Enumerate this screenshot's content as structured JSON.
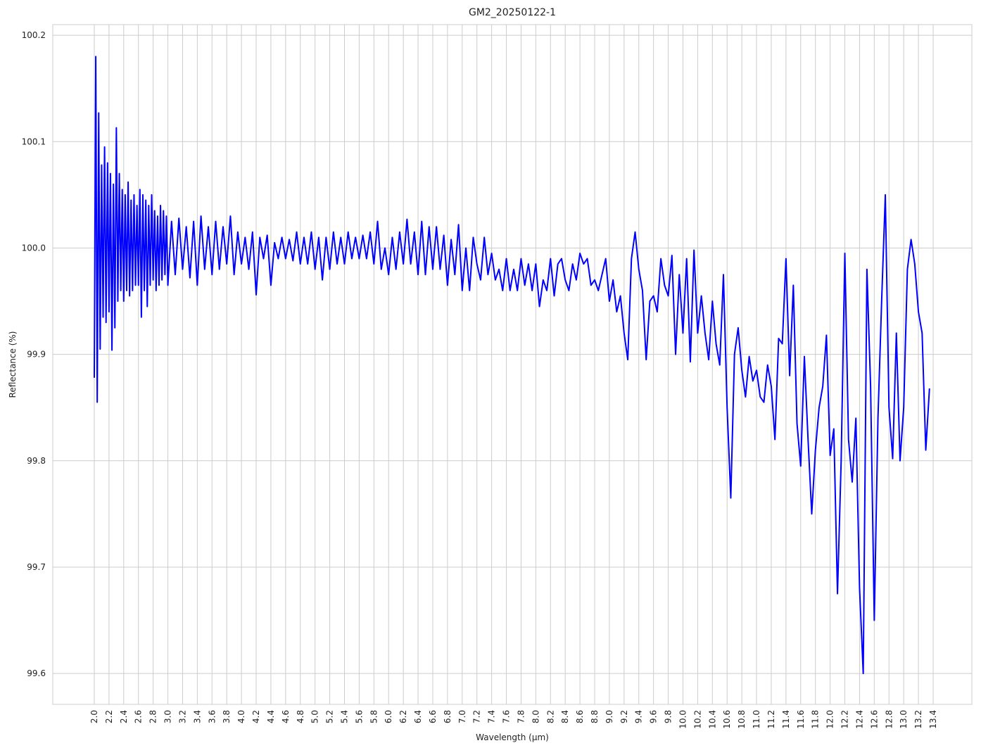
{
  "chart_data": {
    "type": "line",
    "title": "GM2_20250122-1",
    "x_label": "Wavelength (µm)",
    "y_label": "Reflectance (%)",
    "color": "#0000ff",
    "grid": true,
    "xlim": [
      1.436,
      13.926
    ],
    "ylim": [
      99.571,
      100.21
    ],
    "xticks": [
      {
        "value": 2,
        "label": "2.0"
      },
      2.2,
      2.4,
      2.6,
      2.8,
      {
        "value": 3,
        "label": "3.0"
      },
      3.2,
      3.4,
      3.6,
      3.8,
      {
        "value": 4,
        "label": "4.0"
      },
      4.2,
      4.4,
      4.6,
      4.8,
      {
        "value": 5,
        "label": "5.0"
      },
      5.2,
      5.4,
      5.6,
      5.8,
      {
        "value": 6,
        "label": "6.0"
      },
      6.2,
      6.4,
      6.6,
      6.8,
      {
        "value": 7,
        "label": "7.0"
      },
      7.2,
      7.4,
      7.6,
      7.8,
      {
        "value": 8,
        "label": "8.0"
      },
      8.2,
      8.4,
      8.6,
      8.8,
      {
        "value": 9,
        "label": "9.0"
      },
      9.2,
      9.4,
      9.6,
      9.8,
      {
        "value": 10,
        "label": "10.0"
      },
      10.2,
      10.4,
      10.6,
      10.8,
      {
        "value": 11,
        "label": "11.0"
      },
      11.2,
      11.4,
      11.6,
      11.8,
      {
        "value": 12,
        "label": "12.0"
      },
      12.2,
      12.4,
      12.6,
      12.8,
      {
        "value": 13,
        "label": "13.0"
      },
      13.2,
      13.4
    ],
    "yticks": [
      99.6,
      99.7,
      99.8,
      99.9,
      {
        "value": 100,
        "label": "100.0"
      },
      100.1,
      100.2
    ],
    "x": [
      2.0,
      2.02,
      2.04,
      2.06,
      2.08,
      2.1,
      2.12,
      2.14,
      2.16,
      2.18,
      2.2,
      2.22,
      2.24,
      2.26,
      2.28,
      2.3,
      2.32,
      2.34,
      2.36,
      2.38,
      2.4,
      2.42,
      2.44,
      2.46,
      2.48,
      2.5,
      2.52,
      2.54,
      2.56,
      2.58,
      2.6,
      2.62,
      2.64,
      2.66,
      2.68,
      2.7,
      2.72,
      2.74,
      2.76,
      2.78,
      2.8,
      2.82,
      2.84,
      2.86,
      2.88,
      2.9,
      2.92,
      2.94,
      2.96,
      2.98,
      3.0,
      3.05,
      3.1,
      3.15,
      3.2,
      3.25,
      3.3,
      3.35,
      3.4,
      3.45,
      3.5,
      3.55,
      3.6,
      3.65,
      3.7,
      3.75,
      3.8,
      3.85,
      3.9,
      3.95,
      4.0,
      4.05,
      4.1,
      4.15,
      4.2,
      4.25,
      4.3,
      4.35,
      4.4,
      4.45,
      4.5,
      4.55,
      4.6,
      4.65,
      4.7,
      4.75,
      4.8,
      4.85,
      4.9,
      4.95,
      5.0,
      5.05,
      5.1,
      5.15,
      5.2,
      5.25,
      5.3,
      5.35,
      5.4,
      5.45,
      5.5,
      5.55,
      5.6,
      5.65,
      5.7,
      5.75,
      5.8,
      5.85,
      5.9,
      5.95,
      6.0,
      6.05,
      6.1,
      6.15,
      6.2,
      6.25,
      6.3,
      6.35,
      6.4,
      6.45,
      6.5,
      6.55,
      6.6,
      6.65,
      6.7,
      6.75,
      6.8,
      6.85,
      6.9,
      6.95,
      7.0,
      7.05,
      7.1,
      7.15,
      7.2,
      7.25,
      7.3,
      7.35,
      7.4,
      7.45,
      7.5,
      7.55,
      7.6,
      7.65,
      7.7,
      7.75,
      7.8,
      7.85,
      7.9,
      7.95,
      8.0,
      8.05,
      8.1,
      8.15,
      8.2,
      8.25,
      8.3,
      8.35,
      8.4,
      8.45,
      8.5,
      8.55,
      8.6,
      8.65,
      8.7,
      8.75,
      8.8,
      8.85,
      8.9,
      8.95,
      9.0,
      9.05,
      9.1,
      9.15,
      9.2,
      9.25,
      9.3,
      9.35,
      9.4,
      9.45,
      9.5,
      9.55,
      9.6,
      9.65,
      9.7,
      9.75,
      9.8,
      9.85,
      9.9,
      9.95,
      10.0,
      10.05,
      10.1,
      10.15,
      10.2,
      10.25,
      10.3,
      10.35,
      10.4,
      10.45,
      10.5,
      10.55,
      10.6,
      10.65,
      10.7,
      10.75,
      10.8,
      10.85,
      10.9,
      10.95,
      11.0,
      11.05,
      11.1,
      11.15,
      11.2,
      11.25,
      11.3,
      11.35,
      11.4,
      11.45,
      11.5,
      11.55,
      11.6,
      11.65,
      11.7,
      11.75,
      11.8,
      11.85,
      11.9,
      11.95,
      12.0,
      12.05,
      12.1,
      12.15,
      12.2,
      12.25,
      12.3,
      12.35,
      12.4,
      12.45,
      12.5,
      12.55,
      12.6,
      12.65,
      12.7,
      12.75,
      12.8,
      12.85,
      12.9,
      12.95,
      13.0,
      13.05,
      13.1,
      13.15,
      13.2,
      13.25,
      13.3,
      13.35
    ],
    "values": [
      99.878,
      100.18,
      99.855,
      100.127,
      99.905,
      100.078,
      99.935,
      100.095,
      99.93,
      100.08,
      99.94,
      100.07,
      99.904,
      100.06,
      99.925,
      100.113,
      99.95,
      100.07,
      99.96,
      100.055,
      99.95,
      100.05,
      99.96,
      100.062,
      99.955,
      100.045,
      99.96,
      100.05,
      99.965,
      100.04,
      99.965,
      100.055,
      99.935,
      100.05,
      99.96,
      100.045,
      99.945,
      100.04,
      99.965,
      100.05,
      99.97,
      100.035,
      99.96,
      100.03,
      99.965,
      100.04,
      99.97,
      100.035,
      99.975,
      100.03,
      99.965,
      100.025,
      99.975,
      100.028,
      99.98,
      100.02,
      99.972,
      100.025,
      99.965,
      100.03,
      99.98,
      100.02,
      99.975,
      100.025,
      99.98,
      100.02,
      99.985,
      100.03,
      99.975,
      100.015,
      99.985,
      100.01,
      99.98,
      100.015,
      99.956,
      100.01,
      99.99,
      100.012,
      99.965,
      100.005,
      99.99,
      100.01,
      99.99,
      100.008,
      99.988,
      100.015,
      99.985,
      100.01,
      99.985,
      100.015,
      99.98,
      100.01,
      99.97,
      100.01,
      99.98,
      100.015,
      99.985,
      100.01,
      99.985,
      100.015,
      99.99,
      100.01,
      99.99,
      100.012,
      99.99,
      100.015,
      99.985,
      100.025,
      99.98,
      100.0,
      99.975,
      100.01,
      99.98,
      100.015,
      99.985,
      100.027,
      99.985,
      100.015,
      99.975,
      100.025,
      99.975,
      100.02,
      99.98,
      100.02,
      99.98,
      100.012,
      99.965,
      100.008,
      99.975,
      100.022,
      99.96,
      100.0,
      99.96,
      100.01,
      99.985,
      99.97,
      100.01,
      99.975,
      99.995,
      99.97,
      99.98,
      99.96,
      99.99,
      99.96,
      99.98,
      99.96,
      99.99,
      99.965,
      99.985,
      99.96,
      99.985,
      99.945,
      99.97,
      99.96,
      99.99,
      99.955,
      99.985,
      99.99,
      99.97,
      99.96,
      99.985,
      99.97,
      99.995,
      99.985,
      99.99,
      99.965,
      99.97,
      99.96,
      99.975,
      99.99,
      99.95,
      99.97,
      99.94,
      99.955,
      99.92,
      99.895,
      99.99,
      100.015,
      99.98,
      99.96,
      99.895,
      99.95,
      99.955,
      99.94,
      99.99,
      99.965,
      99.955,
      99.993,
      99.9,
      99.975,
      99.92,
      99.99,
      99.893,
      99.998,
      99.92,
      99.955,
      99.92,
      99.895,
      99.95,
      99.91,
      99.89,
      99.975,
      99.85,
      99.765,
      99.9,
      99.925,
      99.885,
      99.86,
      99.898,
      99.875,
      99.885,
      99.86,
      99.855,
      99.89,
      99.87,
      99.82,
      99.915,
      99.91,
      99.99,
      99.88,
      99.965,
      99.835,
      99.795,
      99.898,
      99.82,
      99.75,
      99.81,
      99.85,
      99.87,
      99.918,
      99.805,
      99.83,
      99.675,
      99.8,
      99.995,
      99.82,
      99.78,
      99.84,
      99.68,
      99.6,
      99.98,
      99.87,
      99.65,
      99.84,
      99.95,
      100.05,
      99.85,
      99.802,
      99.92,
      99.8,
      99.85,
      99.98,
      100.008,
      99.985,
      99.94,
      99.92,
      99.81,
      99.868
    ]
  }
}
